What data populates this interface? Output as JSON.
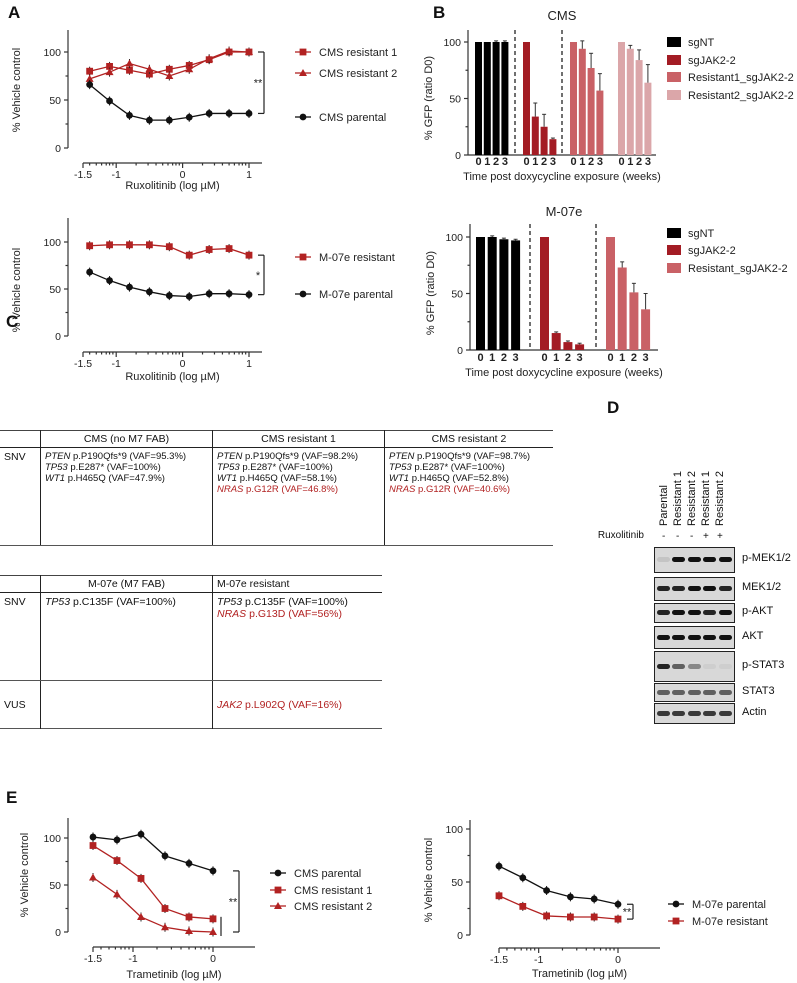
{
  "panel_labels": {
    "a": "A",
    "b": "B",
    "c": "C",
    "d": "D",
    "e": "E"
  },
  "chart_data": [
    {
      "type": "line",
      "panel": "A",
      "title": "",
      "xlabel": "Ruxolitinib (log µM)",
      "ylabel": "% Vehicle control",
      "x": [
        -1.4,
        -1.1,
        -0.8,
        -0.5,
        -0.2,
        0.1,
        0.4,
        0.7,
        1.0
      ],
      "xticks": [
        -1.5,
        -1,
        0,
        1
      ],
      "xtick_labels": [
        "-1.5",
        "-1",
        "0",
        "1"
      ],
      "yticks": [
        0,
        50,
        100
      ],
      "ytick_labels": [
        "0",
        "50",
        "100"
      ],
      "ylim": [
        0,
        120
      ],
      "significance": "**",
      "series": [
        {
          "name": "CMS resistant 1",
          "marker": "square",
          "color": "#b22222",
          "values": [
            80,
            85,
            81,
            77,
            82,
            86,
            92,
            100,
            100
          ]
        },
        {
          "name": "CMS resistant 2",
          "marker": "triangle",
          "color": "#b22222",
          "values": [
            72,
            79,
            88,
            82,
            75,
            82,
            93,
            101,
            100
          ]
        },
        {
          "name": "CMS parental",
          "marker": "circle",
          "color": "#111111",
          "values": [
            66,
            49,
            34,
            29,
            29,
            32,
            36,
            36,
            36
          ]
        }
      ]
    },
    {
      "type": "line",
      "panel": "A",
      "title": "",
      "xlabel": "Ruxolitinib (log µM)",
      "ylabel": "% Vehicle control",
      "x": [
        -1.4,
        -1.1,
        -0.8,
        -0.5,
        -0.2,
        0.1,
        0.4,
        0.7,
        1.0
      ],
      "xticks": [
        -1.5,
        -1,
        0,
        1
      ],
      "xtick_labels": [
        "-1.5",
        "-1",
        "0",
        "1"
      ],
      "yticks": [
        0,
        50,
        100
      ],
      "ytick_labels": [
        "0",
        "50",
        "100"
      ],
      "ylim": [
        0,
        120
      ],
      "significance": "*",
      "series": [
        {
          "name": "M-07e resistant",
          "marker": "square",
          "color": "#b22222",
          "values": [
            96,
            97,
            97,
            97,
            95,
            86,
            92,
            93,
            86
          ]
        },
        {
          "name": "M-07e parental",
          "marker": "circle",
          "color": "#111111",
          "values": [
            68,
            59,
            52,
            47,
            43,
            42,
            45,
            45,
            44
          ]
        }
      ]
    },
    {
      "type": "bar",
      "panel": "B",
      "title": "CMS",
      "xlabel": "Time post doxycycline exposure (weeks)",
      "ylabel": "% GFP (ratio D0)",
      "categories": [
        "0",
        "1",
        "2",
        "3"
      ],
      "yticks": [
        0,
        50,
        100
      ],
      "ytick_labels": [
        "0",
        "50",
        "100"
      ],
      "ylim": [
        0,
        110
      ],
      "series": [
        {
          "name": "sgNT",
          "color": "#000000",
          "values": [
            100,
            100,
            100,
            100
          ],
          "errors": [
            0,
            0,
            1,
            1
          ]
        },
        {
          "name": "sgJAK2-2",
          "color": "#a31c24",
          "values": [
            100,
            34,
            25,
            14
          ],
          "errors": [
            0,
            12,
            11,
            1
          ]
        },
        {
          "name": "Resistant1_sgJAK2-2",
          "color": "#c96166",
          "values": [
            100,
            94,
            77,
            57
          ],
          "errors": [
            0,
            7,
            13,
            15
          ]
        },
        {
          "name": "Resistant2_sgJAK2-2",
          "color": "#dba6a9",
          "values": [
            100,
            94,
            84,
            64
          ],
          "errors": [
            0,
            3,
            9,
            16
          ]
        }
      ]
    },
    {
      "type": "bar",
      "panel": "B",
      "title": "M-07e",
      "xlabel": "Time post doxycycline exposure (weeks)",
      "ylabel": "% GFP (ratio D0)",
      "categories": [
        "0",
        "1",
        "2",
        "3"
      ],
      "yticks": [
        0,
        50,
        100
      ],
      "ytick_labels": [
        "0",
        "50",
        "100"
      ],
      "ylim": [
        0,
        110
      ],
      "series": [
        {
          "name": "sgNT",
          "color": "#000000",
          "values": [
            100,
            100,
            98,
            97
          ],
          "errors": [
            0,
            1,
            1,
            1
          ]
        },
        {
          "name": "sgJAK2-2",
          "color": "#a31c24",
          "values": [
            100,
            15,
            7,
            5
          ],
          "errors": [
            0,
            1,
            1,
            1
          ]
        },
        {
          "name": "Resistant_sgJAK2-2",
          "color": "#c96166",
          "values": [
            100,
            73,
            51,
            36
          ],
          "errors": [
            0,
            5,
            8,
            14
          ]
        }
      ]
    },
    {
      "type": "line",
      "panel": "E",
      "title": "",
      "xlabel": "Trametinib (log µM)",
      "ylabel": "% Vehicle control",
      "x": [
        -1.5,
        -1.2,
        -0.9,
        -0.6,
        -0.3,
        0.0
      ],
      "xticks": [
        -1.5,
        -1,
        0
      ],
      "xtick_labels": [
        "-1.5",
        "-1",
        "0"
      ],
      "yticks": [
        0,
        50,
        100
      ],
      "ytick_labels": [
        "0",
        "50",
        "100"
      ],
      "ylim": [
        0,
        120
      ],
      "significance": "**",
      "series": [
        {
          "name": "CMS parental",
          "marker": "circle",
          "color": "#111111",
          "values": [
            101,
            98,
            104,
            81,
            73,
            65
          ]
        },
        {
          "name": "CMS resistant 1",
          "marker": "square",
          "color": "#b22222",
          "values": [
            92,
            76,
            57,
            25,
            16,
            14
          ]
        },
        {
          "name": "CMS resistant 2",
          "marker": "triangle",
          "color": "#b22222",
          "values": [
            58,
            40,
            16,
            5,
            1,
            0
          ]
        }
      ]
    },
    {
      "type": "line",
      "panel": "E",
      "title": "",
      "xlabel": "Trametinib (log µM)",
      "ylabel": "% Vehicle control",
      "x": [
        -1.5,
        -1.2,
        -0.9,
        -0.6,
        -0.3,
        0.0
      ],
      "xticks": [
        -1.5,
        -1,
        0
      ],
      "xtick_labels": [
        "-1.5",
        "-1",
        "0"
      ],
      "yticks": [
        0,
        50,
        100
      ],
      "ytick_labels": [
        "0",
        "50",
        "100"
      ],
      "ylim": [
        0,
        100
      ],
      "significance": "**",
      "series": [
        {
          "name": "M-07e parental",
          "marker": "circle",
          "color": "#111111",
          "values": [
            65,
            54,
            42,
            36,
            34,
            29
          ]
        },
        {
          "name": "M-07e resistant",
          "marker": "square",
          "color": "#b22222",
          "values": [
            37,
            27,
            18,
            17,
            17,
            15
          ]
        }
      ]
    }
  ],
  "table_cms": {
    "headers": [
      "",
      "CMS (no M7 FAB)",
      "CMS resistant 1",
      "CMS resistant 2"
    ],
    "row_label": "SNV",
    "cells": [
      [
        {
          "gene": "PTEN",
          "rest": " p.P190Qfs*9 (VAF=95.3%)"
        },
        {
          "gene": "TP53",
          "rest": " p.E287* (VAF=100%)"
        },
        {
          "gene": "WT1",
          "rest": " p.H465Q  (VAF=47.9%)"
        }
      ],
      [
        {
          "gene": "PTEN",
          "rest": " p.P190Qfs*9 (VAF=98.2%)"
        },
        {
          "gene": "TP53",
          "rest": " p.E287* (VAF=100%)"
        },
        {
          "gene": "WT1",
          "rest": " p.H465Q  (VAF=58.1%)"
        },
        {
          "gene": "NRAS",
          "rest": " p.G12R (VAF=46.8%)"
        }
      ],
      [
        {
          "gene": "PTEN",
          "rest": " p.P190Qfs*9 (VAF=98.7%)"
        },
        {
          "gene": "TP53",
          "rest": " p.E287* (VAF=100%)"
        },
        {
          "gene": "WT1",
          "rest": " p.H465Q  (VAF=52.8%)"
        },
        {
          "gene": "NRAS",
          "rest": " p.G12R (VAF=40.6%)"
        }
      ]
    ]
  },
  "table_m07e": {
    "headers": [
      "",
      "M-07e (M7 FAB)",
      "M-07e resistant"
    ],
    "rows": [
      {
        "label": "SNV",
        "parental": {
          "gene": "TP53",
          "rest": " p.C135F (VAF=100%)"
        },
        "resistant": [
          {
            "gene": "TP53",
            "rest": " p.C135F (VAF=100%)"
          },
          {
            "gene": "NRAS",
            "rest": " p.G13D (VAF=56%)"
          }
        ]
      },
      {
        "label": "VUS",
        "resistant": [
          {
            "gene": "JAK2",
            "rest": " p.L902Q (VAF=16%)"
          }
        ]
      }
    ]
  },
  "western": {
    "lanes": [
      "Parental",
      "Resistant 1",
      "Resistant 2",
      "Resistant 1",
      "Resistant 2"
    ],
    "treatment_label": "Ruxolitinib",
    "treatment": [
      "-",
      "-",
      "-",
      "+",
      "+"
    ],
    "blots": [
      "p-MEK1/2",
      "MEK1/2",
      "p-AKT",
      "AKT",
      "p-STAT3",
      "STAT3",
      "Actin"
    ]
  },
  "colors": {
    "red": "#b22222",
    "black": "#111111"
  }
}
